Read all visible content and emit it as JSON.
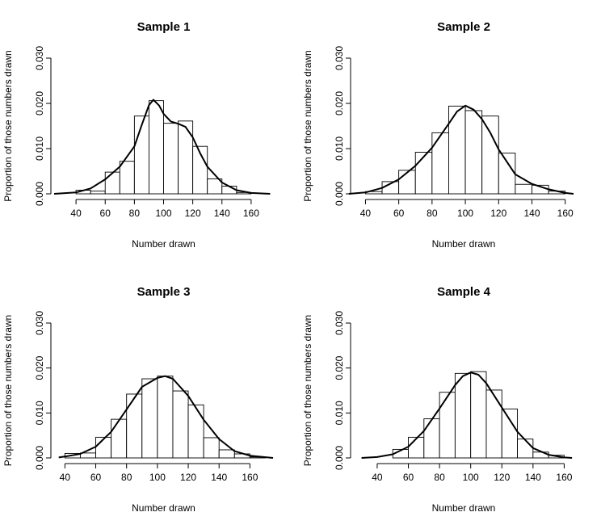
{
  "chart_data": [
    {
      "type": "bar",
      "title": "Sample 1",
      "xlabel": "Number drawn",
      "ylabel": "Proportion of those numbers drawn",
      "bin_edges": [
        40,
        50,
        60,
        70,
        80,
        90,
        100,
        110,
        120,
        130,
        140,
        150,
        160,
        170
      ],
      "values": [
        0.0008,
        0.0006,
        0.0048,
        0.0072,
        0.0172,
        0.0206,
        0.0156,
        0.0161,
        0.0105,
        0.0033,
        0.0017,
        0.0003,
        0.0
      ],
      "density_x": [
        25,
        40,
        50,
        60,
        70,
        80,
        85,
        90,
        93,
        97,
        100,
        105,
        110,
        115,
        120,
        125,
        130,
        140,
        150,
        160,
        173
      ],
      "density_y": [
        0.0,
        0.0003,
        0.0012,
        0.0032,
        0.006,
        0.0105,
        0.0152,
        0.0196,
        0.0208,
        0.0195,
        0.0177,
        0.016,
        0.0155,
        0.0148,
        0.0125,
        0.009,
        0.006,
        0.0025,
        0.0008,
        0.0002,
        0.0
      ],
      "xticks": [
        40,
        60,
        80,
        100,
        120,
        140,
        160
      ],
      "yticks": [
        "0.000",
        "0.010",
        "0.020",
        "0.030"
      ],
      "xlim": [
        25,
        175
      ],
      "ylim": [
        0,
        0.03
      ]
    },
    {
      "type": "bar",
      "title": "Sample 2",
      "xlabel": "Number drawn",
      "ylabel": "Proportion of those numbers drawn",
      "bin_edges": [
        40,
        50,
        60,
        70,
        80,
        90,
        100,
        110,
        120,
        130,
        140,
        150,
        160
      ],
      "values": [
        0.0005,
        0.0027,
        0.0052,
        0.0092,
        0.0135,
        0.0194,
        0.0184,
        0.0172,
        0.009,
        0.0021,
        0.0019,
        0.0006
      ],
      "density_x": [
        30,
        40,
        50,
        60,
        70,
        80,
        90,
        95,
        100,
        105,
        110,
        115,
        120,
        130,
        140,
        150,
        160,
        165
      ],
      "density_y": [
        0.0,
        0.0003,
        0.0013,
        0.0032,
        0.0062,
        0.0102,
        0.0155,
        0.0182,
        0.0195,
        0.0186,
        0.0165,
        0.0135,
        0.0098,
        0.0043,
        0.0022,
        0.001,
        0.0002,
        0.0
      ],
      "xticks": [
        40,
        60,
        80,
        100,
        120,
        140,
        160
      ],
      "yticks": [
        "0.000",
        "0.010",
        "0.020",
        "0.030"
      ],
      "xlim": [
        33,
        165
      ],
      "ylim": [
        0,
        0.03
      ]
    },
    {
      "type": "bar",
      "title": "Sample 3",
      "xlabel": "Number drawn",
      "ylabel": "Proportion of those numbers drawn",
      "bin_edges": [
        40,
        50,
        60,
        70,
        80,
        90,
        100,
        110,
        120,
        130,
        140,
        150,
        160,
        170
      ],
      "values": [
        0.001,
        0.0011,
        0.0046,
        0.0086,
        0.0142,
        0.0176,
        0.0182,
        0.0149,
        0.0118,
        0.0045,
        0.0018,
        0.0009,
        0.0002
      ],
      "density_x": [
        36,
        40,
        50,
        60,
        70,
        80,
        90,
        100,
        105,
        110,
        120,
        130,
        140,
        150,
        160,
        175
      ],
      "density_y": [
        0.0001,
        0.0003,
        0.0009,
        0.0025,
        0.0058,
        0.0108,
        0.0158,
        0.0178,
        0.0182,
        0.0176,
        0.0138,
        0.0085,
        0.0042,
        0.0015,
        0.0005,
        0.0
      ],
      "xticks": [
        40,
        60,
        80,
        100,
        120,
        140,
        160
      ],
      "yticks": [
        "0.000",
        "0.010",
        "0.020",
        "0.030"
      ],
      "xlim": [
        33,
        175
      ],
      "ylim": [
        0,
        0.03
      ]
    },
    {
      "type": "bar",
      "title": "Sample 4",
      "xlabel": "Number drawn",
      "ylabel": "Proportion of those numbers drawn",
      "bin_edges": [
        40,
        50,
        60,
        70,
        80,
        90,
        100,
        110,
        120,
        130,
        140,
        150,
        160
      ],
      "values": [
        0.0,
        0.0019,
        0.0046,
        0.0087,
        0.0146,
        0.0188,
        0.0192,
        0.0151,
        0.0109,
        0.0042,
        0.0013,
        0.0006
      ],
      "density_x": [
        30,
        40,
        50,
        60,
        70,
        80,
        90,
        95,
        100,
        105,
        110,
        120,
        130,
        140,
        150,
        160,
        165
      ],
      "density_y": [
        0.0,
        0.0002,
        0.0008,
        0.0025,
        0.006,
        0.011,
        0.0162,
        0.0182,
        0.019,
        0.0185,
        0.0166,
        0.0112,
        0.0058,
        0.0022,
        0.0007,
        0.0001,
        0.0
      ],
      "xticks": [
        40,
        60,
        80,
        100,
        120,
        140,
        160
      ],
      "yticks": [
        "0.000",
        "0.010",
        "0.020",
        "0.030"
      ],
      "xlim": [
        25,
        166
      ],
      "ylim": [
        0,
        0.03
      ]
    }
  ]
}
